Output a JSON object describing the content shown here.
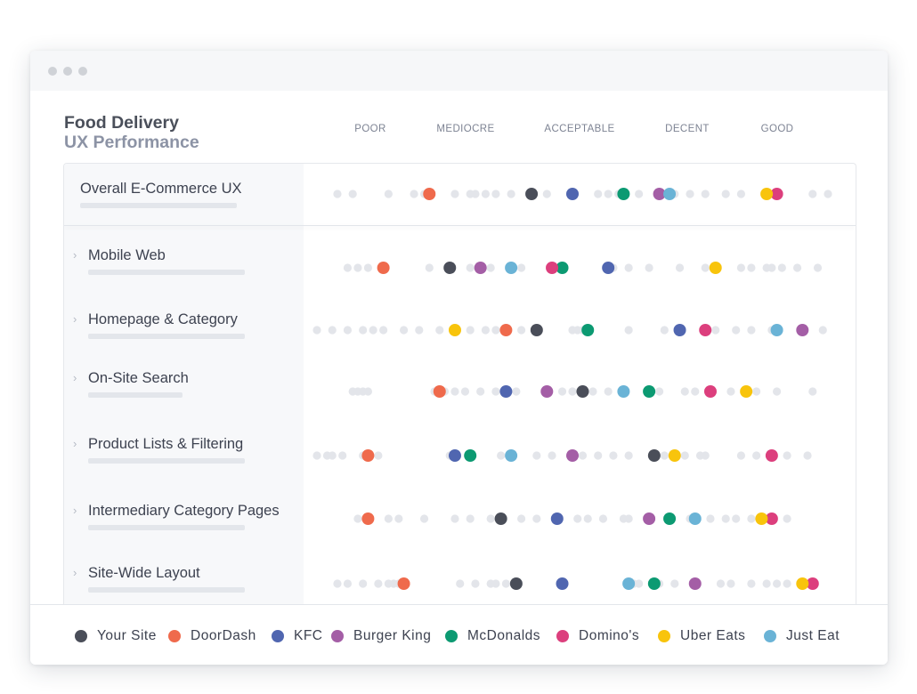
{
  "colors": {
    "Your Site": "#4a4e59",
    "DoorDash": "#ef6a4c",
    "KFC": "#5066b0",
    "Burger King": "#a45ea6",
    "McDonalds": "#0c9a72",
    "Domino's": "#dc3f7d",
    "Uber Eats": "#f8c40c",
    "Just Eat": "#6ab3d6",
    "filler": "#e3e5ea"
  },
  "chart_data": {
    "type": "scatter",
    "title": "Food Delivery",
    "subtitle": "UX Performance",
    "scale": [
      "POOR",
      "MEDIOCRE",
      "ACCEPTABLE",
      "DECENT",
      "GOOD"
    ],
    "xlim": [
      0,
      100
    ],
    "legend_position": "bottom",
    "categories": [
      "Overall E-Commerce UX",
      "Mobile Web",
      "Homepage & Category",
      "On-Site Search",
      "Product Lists & Filtering",
      "Intermediary Category Pages",
      "Site-Wide Layout"
    ],
    "series": [
      {
        "name": "Your Site",
        "values": [
          42,
          26,
          43,
          52,
          66,
          36,
          39
        ]
      },
      {
        "name": "DoorDash",
        "values": [
          22,
          13,
          37,
          24,
          10,
          10,
          17
        ]
      },
      {
        "name": "KFC",
        "values": [
          50,
          57,
          71,
          37,
          27,
          47,
          48
        ]
      },
      {
        "name": "Burger King",
        "values": [
          67,
          32,
          95,
          45,
          50,
          65,
          74
        ]
      },
      {
        "name": "McDonalds",
        "values": [
          60,
          48,
          53,
          65,
          30,
          69,
          66
        ]
      },
      {
        "name": "Domino's",
        "values": [
          90,
          46,
          76,
          77,
          89,
          89,
          97
        ]
      },
      {
        "name": "Uber Eats",
        "values": [
          88,
          78,
          27,
          84,
          70,
          87,
          95
        ]
      },
      {
        "name": "Just Eat",
        "values": [
          69,
          38,
          90,
          60,
          38,
          74,
          61
        ]
      }
    ],
    "filler_values": [
      [
        4,
        7,
        14,
        19,
        21,
        27,
        30,
        31,
        33,
        35,
        38,
        45,
        55,
        57,
        59,
        63,
        70,
        73,
        76,
        80,
        83,
        97,
        100
      ],
      [
        6,
        8,
        10,
        13,
        22,
        30,
        34,
        40,
        58,
        61,
        65,
        71,
        76,
        83,
        85,
        88,
        89,
        91,
        94,
        98
      ],
      [
        0,
        3,
        6,
        9,
        11,
        13,
        17,
        20,
        24,
        30,
        33,
        35,
        40,
        50,
        51,
        52,
        61,
        68,
        78,
        82,
        85,
        89,
        99
      ],
      [
        7,
        8,
        9,
        10,
        23,
        25,
        27,
        29,
        32,
        35,
        39,
        48,
        50,
        54,
        57,
        60,
        67,
        72,
        74,
        81,
        86,
        90,
        97
      ],
      [
        0,
        2,
        3,
        5,
        9,
        12,
        26,
        36,
        43,
        46,
        52,
        55,
        58,
        61,
        68,
        72,
        75,
        76,
        83,
        86,
        92,
        96
      ],
      [
        8,
        14,
        16,
        21,
        27,
        30,
        34,
        40,
        43,
        51,
        53,
        56,
        60,
        61,
        73,
        77,
        80,
        82,
        85,
        92
      ],
      [
        4,
        6,
        9,
        12,
        14,
        15,
        16,
        28,
        31,
        34,
        35,
        37,
        62,
        63,
        67,
        70,
        79,
        81,
        85,
        88,
        90,
        92
      ]
    ]
  }
}
